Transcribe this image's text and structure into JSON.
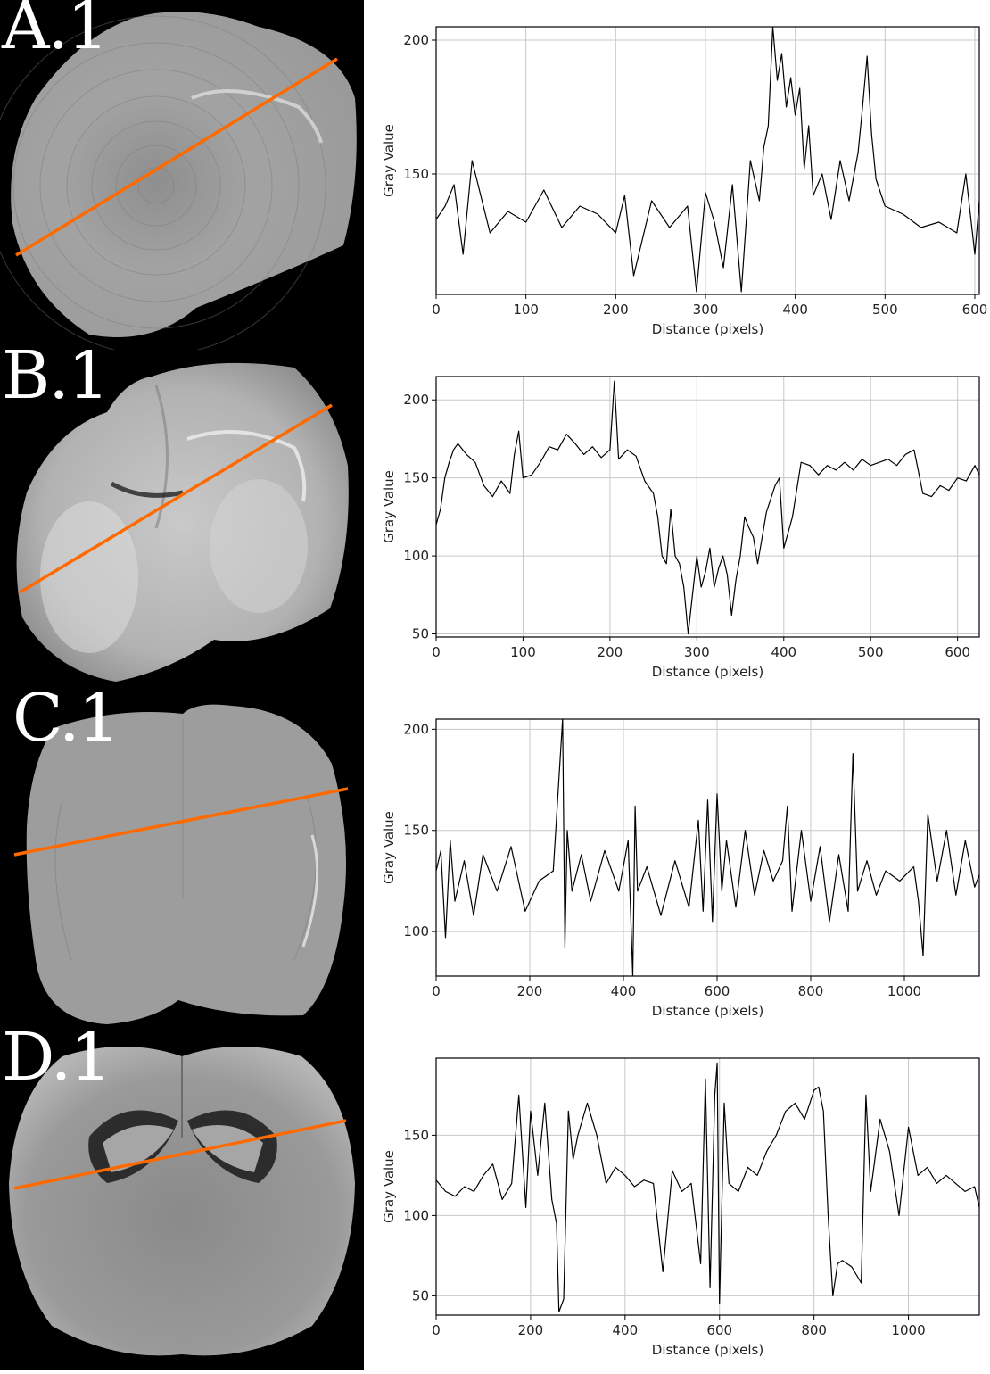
{
  "colors": {
    "profile_line": "#ff6a00",
    "trace": "#000000",
    "grid": "#c8c8c8",
    "panel_background": "#000000"
  },
  "panels": [
    {
      "label": "A.1",
      "tissue_style": "grey-rings",
      "chart_data": {
        "type": "line",
        "xlabel": "Distance (pixels)",
        "ylabel": "Gray Value",
        "xlim": [
          0,
          605
        ],
        "ylim": [
          105,
          205
        ],
        "xticks": [
          0,
          100,
          200,
          300,
          400,
          500,
          600
        ],
        "yticks": [
          150,
          200
        ],
        "grid": true,
        "series": [
          {
            "name": "",
            "x": [
              0,
              10,
              20,
              30,
              40,
              60,
              80,
              100,
              120,
              140,
              160,
              180,
              200,
              210,
              220,
              240,
              260,
              280,
              290,
              300,
              310,
              320,
              330,
              340,
              350,
              360,
              365,
              370,
              375,
              380,
              385,
              390,
              395,
              400,
              405,
              410,
              415,
              420,
              430,
              440,
              450,
              460,
              470,
              475,
              480,
              485,
              490,
              500,
              520,
              540,
              560,
              580,
              590,
              600,
              605
            ],
            "y": [
              133,
              138,
              146,
              120,
              155,
              128,
              136,
              132,
              144,
              130,
              138,
              135,
              128,
              142,
              112,
              140,
              130,
              138,
              106,
              143,
              132,
              115,
              146,
              106,
              155,
              140,
              160,
              168,
              205,
              185,
              195,
              175,
              186,
              172,
              182,
              152,
              168,
              142,
              150,
              133,
              155,
              140,
              158,
              175,
              194,
              165,
              148,
              138,
              135,
              130,
              132,
              128,
              150,
              120,
              140
            ]
          }
        ]
      }
    },
    {
      "label": "B.1",
      "tissue_style": "smooth-brain",
      "chart_data": {
        "type": "line",
        "xlabel": "Distance (pixels)",
        "ylabel": "Gray Value",
        "xlim": [
          0,
          625
        ],
        "ylim": [
          48,
          215
        ],
        "xticks": [
          0,
          100,
          200,
          300,
          400,
          500,
          600
        ],
        "yticks": [
          50,
          100,
          150,
          200
        ],
        "grid": true,
        "series": [
          {
            "name": "",
            "x": [
              0,
              5,
              10,
              15,
              20,
              25,
              35,
              45,
              55,
              65,
              75,
              85,
              90,
              95,
              100,
              110,
              120,
              130,
              140,
              150,
              160,
              170,
              180,
              190,
              200,
              205,
              210,
              220,
              230,
              240,
              250,
              255,
              260,
              265,
              270,
              275,
              280,
              285,
              290,
              295,
              300,
              305,
              310,
              315,
              320,
              325,
              330,
              335,
              340,
              345,
              350,
              355,
              360,
              365,
              370,
              380,
              390,
              395,
              400,
              410,
              420,
              430,
              440,
              450,
              460,
              470,
              480,
              490,
              500,
              510,
              520,
              530,
              540,
              550,
              560,
              570,
              580,
              590,
              600,
              610,
              620,
              625
            ],
            "y": [
              120,
              130,
              150,
              160,
              168,
              172,
              165,
              160,
              145,
              138,
              148,
              140,
              165,
              180,
              150,
              152,
              160,
              170,
              168,
              178,
              172,
              165,
              170,
              163,
              168,
              212,
              162,
              168,
              164,
              148,
              140,
              125,
              100,
              95,
              130,
              100,
              95,
              80,
              50,
              75,
              100,
              80,
              90,
              105,
              80,
              92,
              100,
              88,
              62,
              85,
              100,
              125,
              118,
              112,
              95,
              128,
              145,
              150,
              105,
              125,
              160,
              158,
              152,
              158,
              155,
              160,
              155,
              162,
              158,
              160,
              162,
              158,
              165,
              168,
              140,
              138,
              145,
              142,
              150,
              148,
              158,
              152
            ]
          }
        ]
      }
    },
    {
      "label": "C.1",
      "tissue_style": "grey-noise",
      "chart_data": {
        "type": "line",
        "xlabel": "Distance (pixels)",
        "ylabel": "Gray Value",
        "xlim": [
          0,
          1160
        ],
        "ylim": [
          78,
          205
        ],
        "xticks": [
          0,
          200,
          400,
          600,
          800,
          1000
        ],
        "yticks": [
          100,
          150,
          200
        ],
        "grid": true,
        "series": [
          {
            "name": "",
            "x": [
              0,
              10,
              20,
              30,
              40,
              60,
              80,
              100,
              130,
              160,
              190,
              220,
              250,
              270,
              275,
              280,
              290,
              310,
              330,
              360,
              390,
              410,
              420,
              425,
              430,
              450,
              480,
              510,
              540,
              560,
              570,
              580,
              590,
              600,
              610,
              620,
              640,
              660,
              680,
              700,
              720,
              740,
              750,
              760,
              780,
              800,
              820,
              840,
              860,
              880,
              890,
              900,
              920,
              940,
              960,
              990,
              1020,
              1030,
              1040,
              1050,
              1070,
              1090,
              1110,
              1130,
              1150,
              1160
            ],
            "y": [
              130,
              140,
              97,
              145,
              115,
              135,
              108,
              138,
              120,
              142,
              110,
              125,
              130,
              205,
              92,
              150,
              120,
              138,
              115,
              140,
              120,
              145,
              78,
              162,
              120,
              132,
              108,
              135,
              112,
              155,
              110,
              165,
              105,
              168,
              120,
              145,
              112,
              150,
              118,
              140,
              125,
              135,
              162,
              110,
              150,
              115,
              142,
              105,
              138,
              110,
              188,
              120,
              135,
              118,
              130,
              125,
              132,
              115,
              88,
              158,
              125,
              150,
              118,
              145,
              122,
              128
            ]
          }
        ]
      }
    },
    {
      "label": "D.1",
      "tissue_style": "hippocampus",
      "chart_data": {
        "type": "line",
        "xlabel": "Distance (pixels)",
        "ylabel": "Gray Value",
        "xlim": [
          0,
          1150
        ],
        "ylim": [
          38,
          198
        ],
        "xticks": [
          0,
          200,
          400,
          600,
          800,
          1000
        ],
        "yticks": [
          50,
          100,
          150
        ],
        "grid": true,
        "series": [
          {
            "name": "",
            "x": [
              0,
              20,
              40,
              60,
              80,
              100,
              120,
              140,
              160,
              175,
              190,
              200,
              215,
              230,
              245,
              255,
              260,
              270,
              280,
              290,
              300,
              320,
              340,
              360,
              380,
              400,
              420,
              440,
              460,
              480,
              500,
              520,
              540,
              560,
              570,
              580,
              590,
              595,
              600,
              610,
              620,
              640,
              660,
              680,
              700,
              720,
              740,
              760,
              780,
              800,
              810,
              820,
              830,
              840,
              850,
              860,
              880,
              900,
              910,
              920,
              940,
              960,
              980,
              1000,
              1020,
              1040,
              1060,
              1080,
              1100,
              1120,
              1140,
              1150
            ],
            "y": [
              122,
              115,
              112,
              118,
              115,
              125,
              132,
              110,
              120,
              175,
              105,
              165,
              125,
              170,
              110,
              95,
              40,
              48,
              165,
              135,
              150,
              170,
              150,
              120,
              130,
              125,
              118,
              122,
              120,
              65,
              128,
              115,
              120,
              70,
              185,
              55,
              175,
              195,
              45,
              170,
              120,
              115,
              130,
              125,
              140,
              150,
              165,
              170,
              160,
              178,
              180,
              165,
              100,
              50,
              70,
              72,
              68,
              58,
              175,
              115,
              160,
              140,
              100,
              155,
              125,
              130,
              120,
              125,
              120,
              115,
              118,
              105
            ]
          }
        ]
      }
    }
  ]
}
